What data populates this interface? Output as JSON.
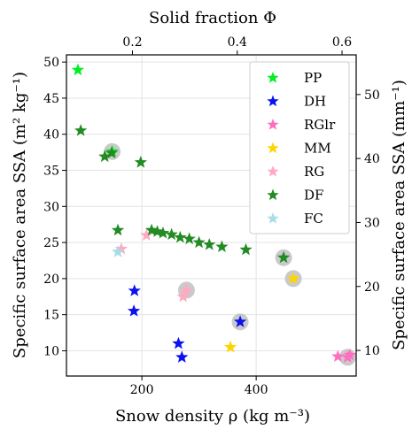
{
  "chart_data": {
    "type": "scatter",
    "xlabel": "Snow density ρ (kg m⁻³)",
    "ylabel": "Specific surface area SSA (m² kg⁻¹)",
    "top_xlabel": "Solid fraction Φ",
    "right_ylabel": "Specific surface area SSA (mm⁻¹)",
    "xlim": [
      68,
      575
    ],
    "ylim": [
      6.5,
      51
    ],
    "top_xlim": [
      0.074,
      0.627
    ],
    "right_ylim": [
      6,
      56.2
    ],
    "x_ticks": [
      200,
      400
    ],
    "y_ticks": [
      10,
      15,
      20,
      25,
      30,
      35,
      40,
      45,
      50
    ],
    "top_ticks": [
      0.2,
      0.4,
      0.6
    ],
    "right_ticks": [
      10,
      20,
      30,
      40,
      50
    ],
    "x_tick_labels": [
      "200",
      "400"
    ],
    "y_tick_labels": [
      "10",
      "15",
      "20",
      "25",
      "30",
      "35",
      "40",
      "45",
      "50"
    ],
    "top_tick_labels": [
      "0.2",
      "0.4",
      "0.6"
    ],
    "right_tick_labels": [
      "10",
      "20",
      "30",
      "40",
      "50"
    ],
    "grid": true,
    "legend_position": "top-right",
    "series": [
      {
        "name": "PP",
        "color": "#00ee22",
        "points": [
          [
            88,
            48.9
          ],
          [
            148,
            37.6
          ]
        ]
      },
      {
        "name": "DH",
        "color": "#0a12f0",
        "points": [
          [
            187,
            18.3
          ],
          [
            186,
            15.5
          ],
          [
            264,
            11.0
          ],
          [
            270,
            9.1
          ],
          [
            372,
            14.0
          ]
        ]
      },
      {
        "name": "RGlr",
        "color": "#ff6fc0",
        "points": [
          [
            543,
            9.2
          ],
          [
            560,
            9.1
          ],
          [
            564,
            9.4
          ]
        ]
      },
      {
        "name": "MM",
        "color": "#ffd500",
        "points": [
          [
            355,
            10.5
          ],
          [
            465,
            20.0
          ]
        ]
      },
      {
        "name": "RG",
        "color": "#ffaac0",
        "points": [
          [
            164,
            24.1
          ],
          [
            208,
            26.0
          ],
          [
            272,
            17.5
          ],
          [
            278,
            18.4
          ]
        ]
      },
      {
        "name": "DF",
        "color": "#228b22",
        "points": [
          [
            93,
            40.5
          ],
          [
            135,
            36.9
          ],
          [
            147,
            37.4
          ],
          [
            198,
            36.1
          ],
          [
            158,
            26.7
          ],
          [
            217,
            26.7
          ],
          [
            227,
            26.5
          ],
          [
            237,
            26.3
          ],
          [
            252,
            26.1
          ],
          [
            267,
            25.7
          ],
          [
            283,
            25.5
          ],
          [
            300,
            25.0
          ],
          [
            318,
            24.7
          ],
          [
            340,
            24.4
          ],
          [
            382,
            24.0
          ],
          [
            448,
            22.9
          ]
        ]
      },
      {
        "name": "FC",
        "color": "#a8dde6",
        "points": [
          [
            158,
            23.7
          ]
        ]
      }
    ],
    "highlighted_points": [
      [
        148,
        37.6
      ],
      [
        278,
        18.4
      ],
      [
        372,
        14.0
      ],
      [
        448,
        22.9
      ],
      [
        465,
        20.0
      ],
      [
        560,
        9.1
      ]
    ]
  }
}
